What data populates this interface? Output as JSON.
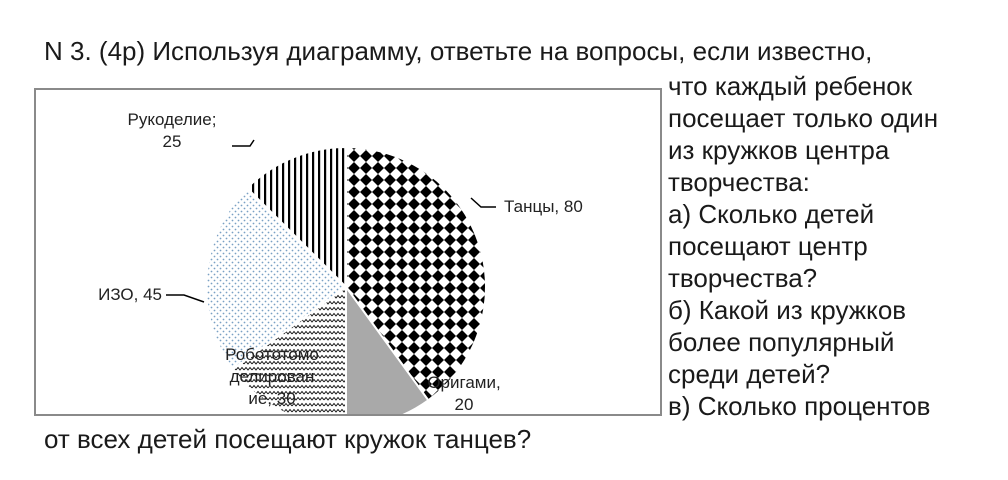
{
  "question": {
    "title_line": "N 3. (4р) Используя диаграмму, ответьте на вопросы, если известно,",
    "side_lines": [
      "что каждый ребенок",
      "посещает только один",
      "из кружков центра",
      "творчества:",
      "а) Сколько детей",
      "посещают центр",
      "творчества?",
      "б) Какой из кружков",
      "более популярный",
      "среди детей?",
      "в) Сколько процентов"
    ],
    "bottom_line": "от всех детей посещают кружок танцев?"
  },
  "chart_data": {
    "type": "pie",
    "title": "",
    "slices": [
      {
        "name": "Танцы",
        "value": 80,
        "pattern": "checker",
        "label_lines": [
          "Танцы, 80"
        ]
      },
      {
        "name": "Оригами",
        "value": 20,
        "pattern": "gray",
        "label_lines": [
          "Оригами,",
          "20"
        ]
      },
      {
        "name": "Робототомоделирование",
        "value": 30,
        "pattern": "zigzag",
        "label_lines": [
          "Робототомо",
          "делирован",
          "ие, 30"
        ]
      },
      {
        "name": "ИЗО",
        "value": 45,
        "pattern": "dots",
        "label_lines": [
          "ИЗО, 45"
        ]
      },
      {
        "name": "Рукоделие",
        "value": 25,
        "pattern": "vstripes",
        "label_lines": [
          "Рукоделие;",
          "25"
        ]
      }
    ],
    "start_angle_deg": 0,
    "direction": "clockwise",
    "colors": {
      "stroke": "#ffffff",
      "fill_dark": "#000000",
      "fill_gray": "#a9a9a9",
      "dots": "#7aa0c4"
    }
  }
}
